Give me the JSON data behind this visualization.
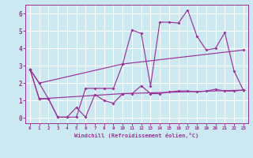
{
  "background_color": "#cce8f0",
  "grid_color": "#ffffff",
  "line_color": "#993399",
  "xlabel": "Windchill (Refroidissement éolien,°C)",
  "xlim": [
    -0.5,
    23.5
  ],
  "ylim": [
    -0.3,
    6.5
  ],
  "yticks": [
    0,
    1,
    2,
    3,
    4,
    5,
    6
  ],
  "xticks": [
    0,
    1,
    2,
    3,
    4,
    5,
    6,
    7,
    8,
    9,
    10,
    11,
    12,
    13,
    14,
    15,
    16,
    17,
    18,
    19,
    20,
    21,
    22,
    23
  ],
  "line1_x": [
    0,
    1,
    2,
    3,
    4,
    5,
    6,
    7,
    8,
    9,
    10,
    11,
    12,
    13,
    14,
    15,
    16,
    17,
    18,
    19,
    20,
    21,
    22,
    23
  ],
  "line1_y": [
    2.8,
    2.0,
    1.1,
    0.05,
    0.05,
    0.6,
    0.05,
    1.35,
    1.0,
    0.85,
    1.4,
    1.4,
    1.85,
    1.4,
    1.4,
    1.5,
    1.55,
    1.55,
    1.5,
    1.55,
    1.65,
    1.55,
    1.55,
    1.6
  ],
  "line2_x": [
    0,
    1,
    2,
    3,
    4,
    5,
    6,
    7,
    8,
    9,
    10,
    11,
    12,
    13,
    14,
    15,
    16,
    17,
    18,
    19,
    20,
    21,
    22,
    23
  ],
  "line2_y": [
    2.8,
    1.1,
    1.1,
    0.05,
    0.05,
    0.05,
    1.7,
    1.7,
    1.7,
    1.7,
    3.1,
    5.05,
    4.85,
    1.85,
    5.5,
    5.5,
    5.45,
    6.2,
    4.7,
    3.9,
    4.0,
    4.9,
    2.7,
    1.6
  ],
  "line3_x": [
    0,
    1,
    10,
    23
  ],
  "line3_y": [
    2.8,
    2.0,
    3.1,
    3.9
  ],
  "line4_x": [
    0,
    1,
    10,
    23
  ],
  "line4_y": [
    2.8,
    1.1,
    1.4,
    1.6
  ]
}
